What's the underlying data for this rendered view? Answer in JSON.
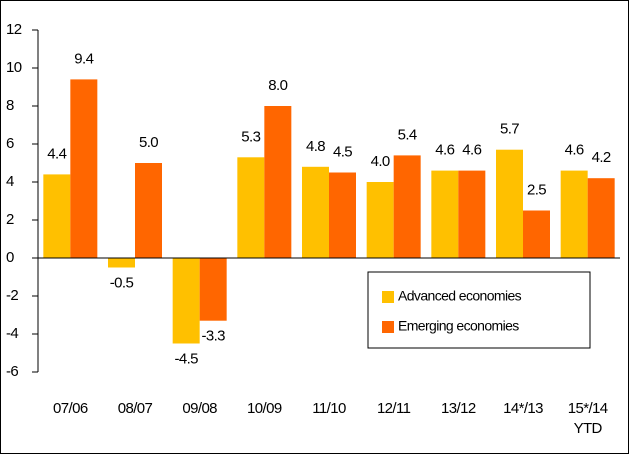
{
  "chart_data": {
    "type": "bar",
    "categories": [
      "07/06",
      "08/07",
      "09/08",
      "10/09",
      "11/10",
      "12/11",
      "13/12",
      "14*/13",
      "15*/14 YTD"
    ],
    "series": [
      {
        "name": "Advanced economies",
        "color": "#ffc000",
        "values": [
          4.4,
          -0.5,
          -4.5,
          5.3,
          4.8,
          4.0,
          4.6,
          5.7,
          4.6
        ],
        "value_labels": [
          "4.4",
          "-0.5",
          "-4.5",
          "5.3",
          "4.8",
          "4.0",
          "4.6",
          "5.7",
          "4.6"
        ]
      },
      {
        "name": "Emerging economies",
        "color": "#ff6600",
        "values": [
          9.4,
          5.0,
          -3.3,
          8.0,
          4.5,
          5.4,
          4.6,
          2.5,
          4.2
        ],
        "value_labels": [
          "9.4",
          "5.0",
          "-3.3",
          "8.0",
          "4.5",
          "5.4",
          "4.6",
          "2.5",
          "4.2"
        ]
      }
    ],
    "ylim": [
      -6,
      12
    ],
    "yticks": [
      -6,
      -4,
      -2,
      0,
      2,
      4,
      6,
      8,
      10,
      12
    ],
    "grid": false,
    "legend": "center-right"
  }
}
